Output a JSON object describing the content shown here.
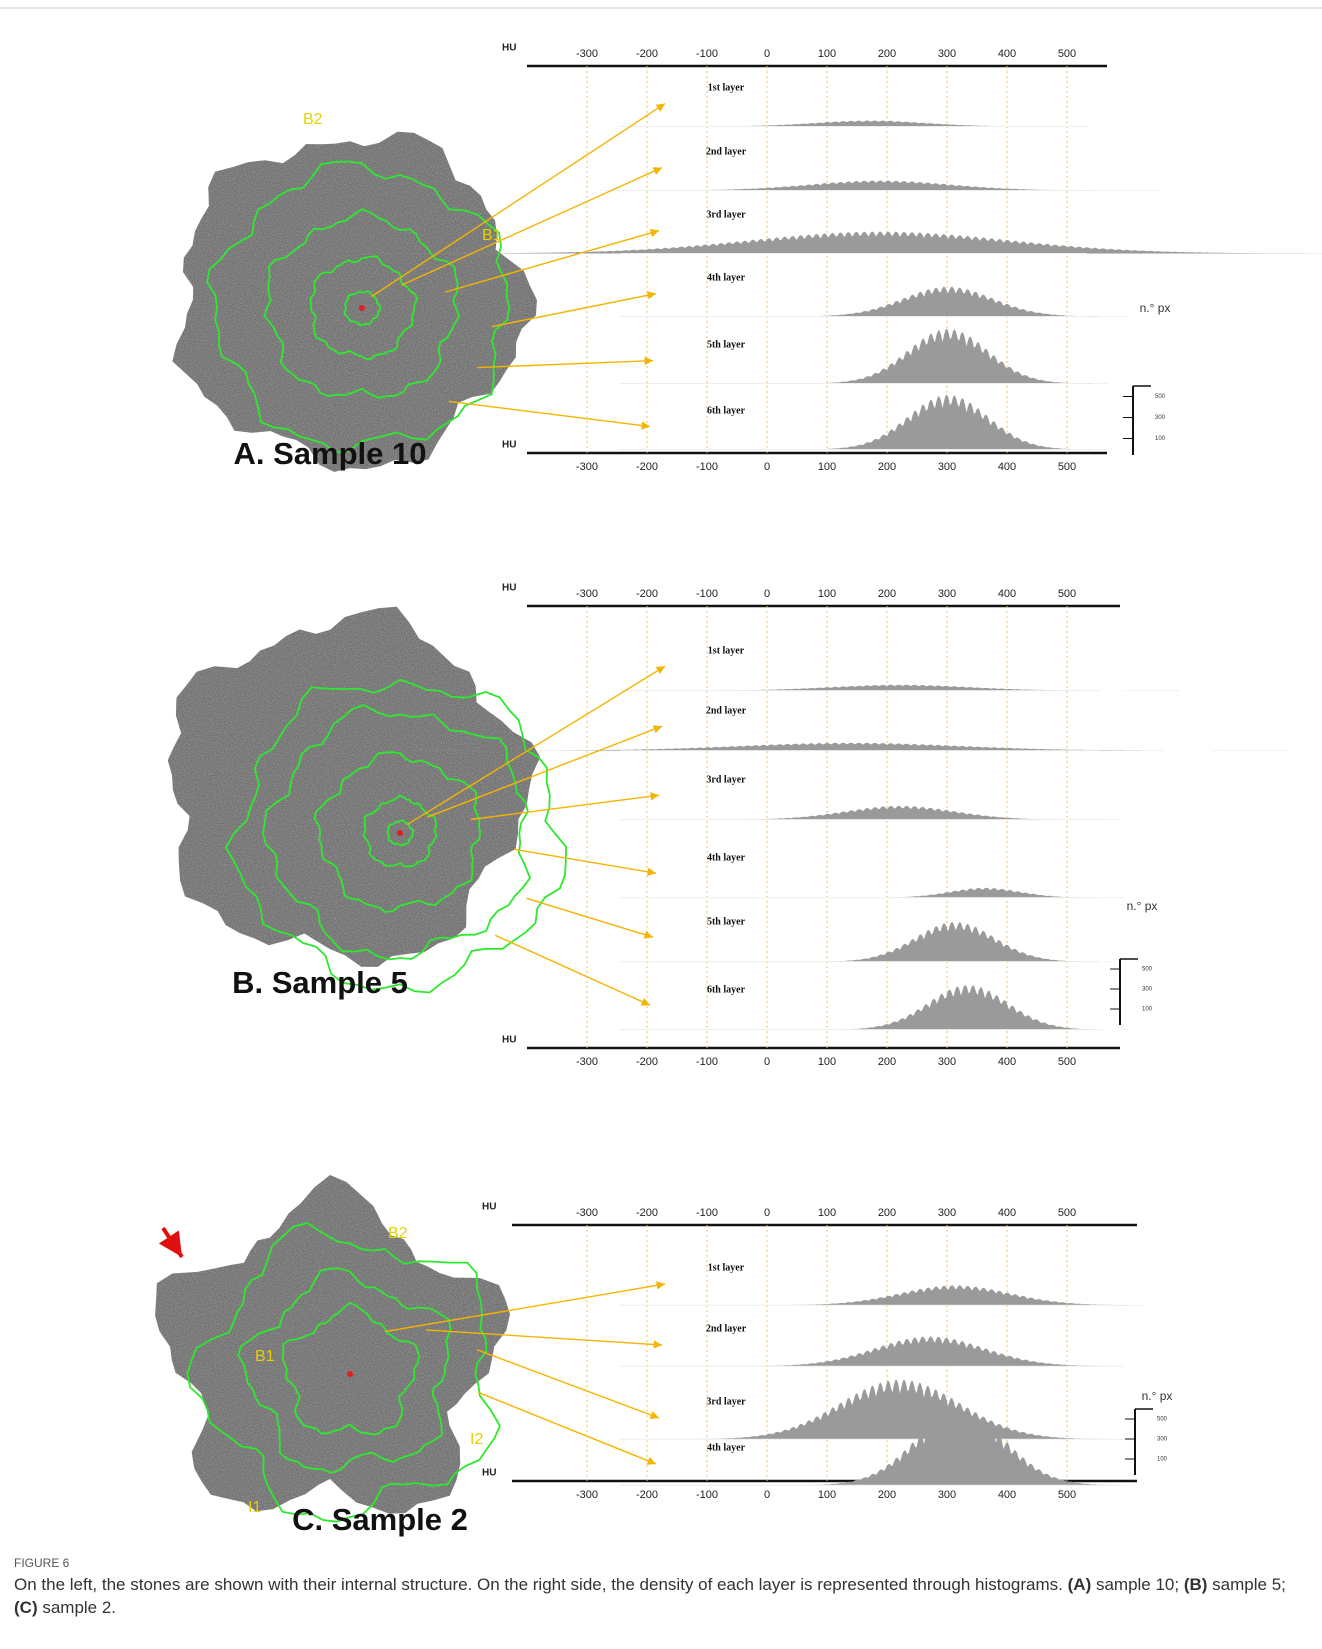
{
  "figure": {
    "panels": [
      {
        "label": "A. Sample 10",
        "stone_labels": [
          "B2",
          "B1"
        ],
        "axis_label": "HU",
        "hu_ticks": [
          -300,
          -200,
          -100,
          0,
          100,
          200,
          300,
          400,
          500
        ],
        "layers": [
          "1st layer",
          "2nd layer",
          "3rd layer",
          "4th layer",
          "5th layer",
          "6th layer"
        ],
        "count_label": "n.° px",
        "count_ticks": [
          500,
          300,
          100
        ]
      },
      {
        "label": "B. Sample 5",
        "stone_labels": [],
        "axis_label": "HU",
        "hu_ticks": [
          -300,
          -200,
          -100,
          0,
          100,
          200,
          300,
          400,
          500
        ],
        "layers": [
          "1st layer",
          "2nd layer",
          "3rd layer",
          "4th layer",
          "5th layer",
          "6th layer"
        ],
        "count_label": "n.° px",
        "count_ticks": [
          500,
          300,
          100
        ]
      },
      {
        "label": "C. Sample 2",
        "stone_labels": [
          "B2",
          "B1",
          "I2",
          "I1"
        ],
        "axis_label": "HU",
        "hu_ticks": [
          -300,
          -200,
          -100,
          0,
          100,
          200,
          300,
          400,
          500
        ],
        "layers": [
          "1st layer",
          "2nd layer",
          "3rd layer",
          "4th layer"
        ],
        "count_label": "n.° px",
        "count_ticks": [
          500,
          300,
          100
        ]
      }
    ]
  },
  "caption": {
    "title": "FIGURE 6",
    "parts": [
      "On the left, the stones are shown with their internal structure. On the right side, the density of each layer is represented through histograms. ",
      "(A)",
      " sample 10; ",
      "(B)",
      " sample 5; ",
      "(C)",
      " sample 2."
    ]
  }
}
